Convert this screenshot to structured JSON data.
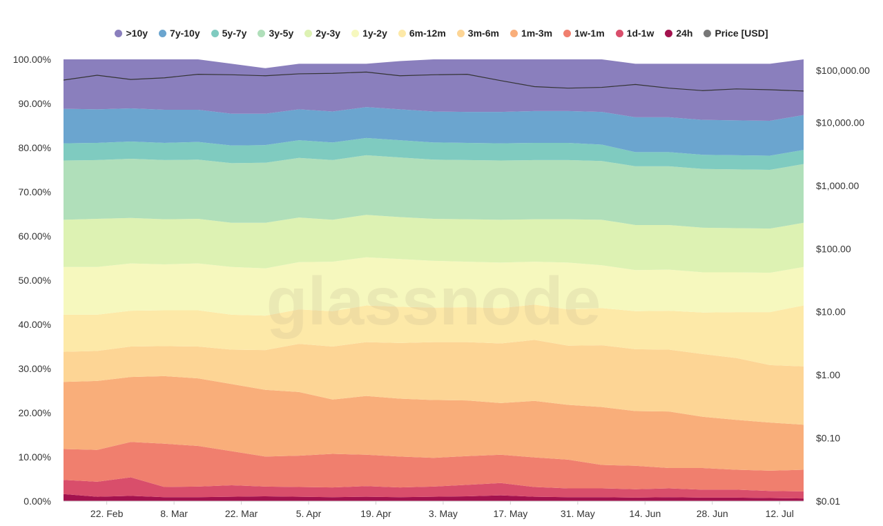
{
  "chart_data": {
    "type": "area",
    "stacked": true,
    "watermark": "glassnode",
    "legend_position": "top-center",
    "x": [
      "2021-02-13",
      "2021-02-20",
      "2021-02-27",
      "2021-03-06",
      "2021-03-13",
      "2021-03-20",
      "2021-03-27",
      "2021-04-03",
      "2021-04-10",
      "2021-04-17",
      "2021-04-24",
      "2021-05-01",
      "2021-05-08",
      "2021-05-15",
      "2021-05-22",
      "2021-05-29",
      "2021-06-05",
      "2021-06-12",
      "2021-06-19",
      "2021-06-26",
      "2021-07-03",
      "2021-07-10",
      "2021-07-17"
    ],
    "x_ticks": [
      {
        "date": "2021-02-22",
        "label": "22. Feb"
      },
      {
        "date": "2021-03-08",
        "label": "8. Mar"
      },
      {
        "date": "2021-03-22",
        "label": "22. Mar"
      },
      {
        "date": "2021-04-05",
        "label": "5. Apr"
      },
      {
        "date": "2021-04-19",
        "label": "19. Apr"
      },
      {
        "date": "2021-05-03",
        "label": "3. May"
      },
      {
        "date": "2021-05-17",
        "label": "17. May"
      },
      {
        "date": "2021-05-31",
        "label": "31. May"
      },
      {
        "date": "2021-06-14",
        "label": "14. Jun"
      },
      {
        "date": "2021-06-28",
        "label": "28. Jun"
      },
      {
        "date": "2021-07-12",
        "label": "12. Jul"
      }
    ],
    "y_left": {
      "ylim": [
        0,
        100
      ],
      "ticks": [
        {
          "value": 0,
          "label": "0.00%"
        },
        {
          "value": 10,
          "label": "10.00%"
        },
        {
          "value": 20,
          "label": "20.00%"
        },
        {
          "value": 30,
          "label": "30.00%"
        },
        {
          "value": 40,
          "label": "40.00%"
        },
        {
          "value": 50,
          "label": "50.00%"
        },
        {
          "value": 60,
          "label": "60.00%"
        },
        {
          "value": 70,
          "label": "70.00%"
        },
        {
          "value": 80,
          "label": "80.00%"
        },
        {
          "value": 90,
          "label": "90.00%"
        },
        {
          "value": 100,
          "label": "100.00%"
        }
      ]
    },
    "y_right": {
      "scale": "log",
      "ylim": [
        0.01,
        100000
      ],
      "ticks": [
        {
          "value": 0.01,
          "label": "$0.01"
        },
        {
          "value": 0.1,
          "label": "$0.10"
        },
        {
          "value": 1,
          "label": "$1.00"
        },
        {
          "value": 10,
          "label": "$10.00"
        },
        {
          "value": 100,
          "label": "$100.00"
        },
        {
          "value": 1000,
          "label": "$1,000.00"
        },
        {
          "value": 10000,
          "label": "$10,000.00"
        },
        {
          "value": 100000,
          "label": "$100,000.00"
        }
      ]
    },
    "series": [
      {
        "name": "24h",
        "color": "#a3124e",
        "values": [
          1.6,
          1.0,
          1.2,
          0.9,
          0.9,
          1.0,
          1.1,
          1.0,
          0.9,
          1.0,
          0.9,
          1.0,
          1.1,
          1.3,
          1.0,
          0.9,
          0.9,
          0.8,
          0.9,
          0.8,
          0.8,
          0.7,
          0.6
        ]
      },
      {
        "name": "1d-1w",
        "color": "#d94e6b",
        "values": [
          3.2,
          3.4,
          4.2,
          2.3,
          2.4,
          2.6,
          2.2,
          2.2,
          2.2,
          2.4,
          2.2,
          2.3,
          2.6,
          2.8,
          2.2,
          2.0,
          2.0,
          1.9,
          2.0,
          1.8,
          1.8,
          1.6,
          1.6
        ]
      },
      {
        "name": "1w-1m",
        "color": "#f07f6e",
        "values": [
          7.0,
          7.2,
          8.0,
          9.8,
          9.2,
          7.7,
          6.8,
          7.1,
          7.6,
          7.1,
          7.0,
          6.5,
          6.5,
          6.4,
          6.7,
          6.5,
          5.3,
          5.3,
          4.6,
          4.9,
          4.5,
          4.6,
          4.9
        ]
      },
      {
        "name": "1m-3m",
        "color": "#f9ae7a",
        "values": [
          15.2,
          15.6,
          14.7,
          15.3,
          15.3,
          15.2,
          15.1,
          14.4,
          12.3,
          13.3,
          13.1,
          13.1,
          12.6,
          11.7,
          12.8,
          12.4,
          13.1,
          12.4,
          12.8,
          11.6,
          11.3,
          10.9,
          10.2
        ]
      },
      {
        "name": "3m-6m",
        "color": "#fdd595",
        "values": [
          6.8,
          6.8,
          6.9,
          6.8,
          7.2,
          7.8,
          9.0,
          10.9,
          12.0,
          12.2,
          12.6,
          13.1,
          13.2,
          13.5,
          13.8,
          13.4,
          14.0,
          14.0,
          14.0,
          14.2,
          14.0,
          13.0,
          13.2
        ]
      },
      {
        "name": "6m-12m",
        "color": "#fde9a8",
        "values": [
          8.4,
          8.2,
          8.1,
          8.1,
          8.2,
          7.9,
          7.8,
          7.8,
          8.0,
          8.3,
          8.2,
          7.8,
          7.9,
          8.0,
          8.0,
          8.2,
          8.4,
          8.6,
          8.8,
          9.4,
          10.4,
          12.0,
          13.8
        ]
      },
      {
        "name": "1y-2y",
        "color": "#f6f8be",
        "values": [
          10.8,
          10.8,
          10.7,
          10.4,
          10.6,
          10.8,
          10.7,
          10.7,
          11.2,
          10.9,
          10.8,
          10.6,
          10.3,
          10.3,
          9.7,
          10.6,
          9.7,
          9.3,
          9.3,
          9.1,
          9.0,
          8.9,
          8.7
        ]
      },
      {
        "name": "2y-3y",
        "color": "#ddf2b3",
        "values": [
          10.7,
          10.9,
          10.3,
          10.2,
          10.1,
          10.0,
          10.3,
          10.1,
          9.5,
          9.6,
          9.5,
          9.5,
          9.6,
          9.7,
          9.6,
          9.8,
          10.3,
          10.2,
          10.1,
          10.1,
          10.0,
          10.0,
          10.0
        ]
      },
      {
        "name": "3y-5y",
        "color": "#b0dfba",
        "values": [
          13.4,
          13.3,
          13.4,
          13.4,
          13.4,
          13.5,
          13.6,
          13.5,
          13.5,
          13.5,
          13.5,
          13.4,
          13.4,
          13.4,
          13.4,
          13.4,
          13.3,
          13.3,
          13.3,
          13.3,
          13.3,
          13.3,
          13.3
        ]
      },
      {
        "name": "5y-7y",
        "color": "#7fcbc0",
        "values": [
          3.9,
          3.9,
          3.9,
          3.9,
          4.0,
          4.0,
          4.0,
          4.0,
          4.0,
          3.9,
          3.9,
          3.9,
          3.9,
          3.9,
          3.9,
          3.9,
          3.7,
          3.2,
          3.2,
          3.2,
          3.2,
          3.2,
          3.2
        ]
      },
      {
        "name": "7y-10y",
        "color": "#6ba5cf",
        "values": [
          7.8,
          7.6,
          7.5,
          7.5,
          7.3,
          7.2,
          7.1,
          7.0,
          7.0,
          7.0,
          7.0,
          7.0,
          7.0,
          7.1,
          7.2,
          7.2,
          7.4,
          7.9,
          7.9,
          7.9,
          7.9,
          7.9,
          7.9
        ]
      },
      {
        "name": ">10y",
        "color": "#8a7fbd",
        "values": [
          11.2,
          11.3,
          11.1,
          11.4,
          11.4,
          11.3,
          10.3,
          10.3,
          10.8,
          9.8,
          10.9,
          11.8,
          11.9,
          11.9,
          11.7,
          11.7,
          11.9,
          12.1,
          12.1,
          12.7,
          12.8,
          12.9,
          12.6
        ]
      }
    ],
    "price": {
      "name": "Price [USD]",
      "color": "#777777",
      "line_color": "#333333",
      "values": [
        47000,
        56000,
        48000,
        51000,
        58000,
        57000,
        55000,
        59000,
        60000,
        63000,
        55000,
        57000,
        58000,
        46000,
        37000,
        35000,
        36000,
        40000,
        35000,
        32000,
        34000,
        33000,
        31500
      ]
    }
  }
}
